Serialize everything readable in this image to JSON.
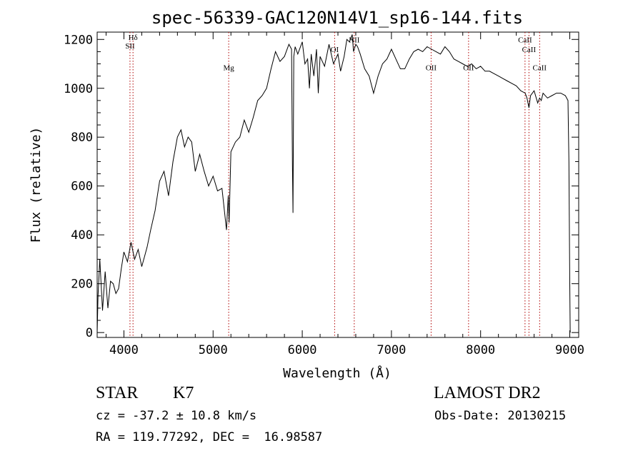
{
  "chart_data": {
    "type": "line",
    "title": "spec-56339-GAC120N14V1_sp16-144.fits",
    "xlabel": "Wavelength (Å)",
    "ylabel": "Flux (relative)",
    "xlim": [
      3700,
      9100
    ],
    "ylim": [
      -20,
      1230
    ],
    "xticks": [
      4000,
      5000,
      6000,
      7000,
      8000,
      9000
    ],
    "yticks": [
      0,
      200,
      400,
      600,
      800,
      1000,
      1200
    ],
    "grid": false,
    "series": [
      {
        "x": [
          3700,
          3710,
          3730,
          3760,
          3790,
          3820,
          3850,
          3880,
          3910,
          3940,
          3970,
          4000,
          4040,
          4080,
          4120,
          4160,
          4200,
          4230,
          4260,
          4300,
          4350,
          4400,
          4450,
          4500,
          4550,
          4600,
          4640,
          4680,
          4720,
          4760,
          4800,
          4850,
          4900,
          4950,
          5000,
          5050,
          5100,
          5150,
          5170,
          5180,
          5200,
          5250,
          5300,
          5350,
          5400,
          5450,
          5500,
          5550,
          5600,
          5650,
          5700,
          5750,
          5800,
          5850,
          5880,
          5890,
          5896,
          5905,
          5920,
          5950,
          6000,
          6030,
          6060,
          6080,
          6100,
          6130,
          6160,
          6180,
          6200,
          6250,
          6300,
          6350,
          6400,
          6430,
          6470,
          6500,
          6530,
          6560,
          6575,
          6600,
          6620,
          6650,
          6700,
          6750,
          6800,
          6850,
          6900,
          6950,
          7000,
          7050,
          7100,
          7150,
          7200,
          7250,
          7300,
          7350,
          7400,
          7450,
          7500,
          7550,
          7600,
          7650,
          7700,
          7750,
          7800,
          7850,
          7900,
          7950,
          8000,
          8050,
          8100,
          8150,
          8200,
          8250,
          8300,
          8350,
          8400,
          8450,
          8500,
          8520,
          8542,
          8560,
          8600,
          8640,
          8662,
          8680,
          8700,
          8750,
          8800,
          8850,
          8900,
          8950,
          8980,
          8990,
          9000,
          9005
        ],
        "y": [
          0,
          150,
          300,
          90,
          250,
          100,
          210,
          200,
          160,
          180,
          260,
          330,
          290,
          370,
          300,
          340,
          270,
          310,
          350,
          420,
          500,
          620,
          660,
          560,
          700,
          800,
          830,
          760,
          800,
          780,
          660,
          730,
          660,
          600,
          640,
          580,
          590,
          420,
          560,
          450,
          740,
          780,
          800,
          870,
          820,
          880,
          950,
          970,
          1000,
          1080,
          1150,
          1110,
          1130,
          1180,
          1160,
          690,
          490,
          1130,
          1170,
          1140,
          1190,
          1100,
          1120,
          1000,
          1140,
          1050,
          1160,
          980,
          1130,
          1090,
          1180,
          1100,
          1140,
          1070,
          1130,
          1200,
          1190,
          1220,
          1150,
          1180,
          1170,
          1140,
          1080,
          1050,
          980,
          1050,
          1100,
          1120,
          1160,
          1120,
          1080,
          1080,
          1120,
          1150,
          1160,
          1150,
          1170,
          1160,
          1150,
          1140,
          1170,
          1150,
          1120,
          1110,
          1100,
          1090,
          1100,
          1080,
          1090,
          1070,
          1070,
          1060,
          1050,
          1040,
          1030,
          1020,
          1010,
          990,
          980,
          960,
          920,
          970,
          990,
          940,
          960,
          950,
          980,
          960,
          970,
          980,
          980,
          970,
          950,
          700,
          200,
          0
        ]
      }
    ],
    "lines": [
      {
        "x": 4068,
        "label": "SII",
        "label_y": 1175
      },
      {
        "x": 4102,
        "label": "Hδ",
        "label_y": 1210
      },
      {
        "x": 5175,
        "label": "Mg",
        "label_y": 1085
      },
      {
        "x": 6363,
        "label": "OI",
        "label_y": 1160
      },
      {
        "x": 6583,
        "label": "NII",
        "label_y": 1200
      },
      {
        "x": 7445,
        "label": "OII",
        "label_y": 1085
      },
      {
        "x": 7865,
        "label": "OII",
        "label_y": 1085
      },
      {
        "x": 8498,
        "label": "CaII",
        "label_y": 1200
      },
      {
        "x": 8542,
        "label": "CaII",
        "label_y": 1160
      },
      {
        "x": 8662,
        "label": "CaII",
        "label_y": 1085
      }
    ],
    "line_color": "#000000",
    "marker_color": "#b00000"
  },
  "info": {
    "class": "STAR",
    "subclass": "K7",
    "survey": "LAMOST DR2",
    "cz": "cz = -37.2 ± 10.8 km/s",
    "obs_date": "Obs-Date: 20130215",
    "coords": "RA = 119.77292, DEC =  16.98587"
  }
}
